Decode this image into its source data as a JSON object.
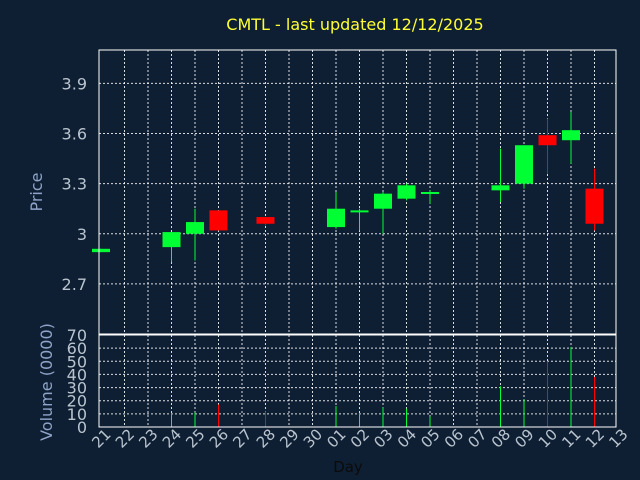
{
  "chart_data": [
    {
      "type": "candlestick",
      "title": "CMTL - last updated 12/12/2025",
      "ylabel": "Price",
      "ylim": [
        2.4,
        4.1
      ],
      "yticks": [
        "2.7",
        "3",
        "3.3",
        "3.6",
        "3.9"
      ],
      "grid": true,
      "x": [
        "21",
        "22",
        "23",
        "24",
        "25",
        "26",
        "27",
        "28",
        "29",
        "30",
        "01",
        "02",
        "03",
        "04",
        "05",
        "06",
        "07",
        "08",
        "09",
        "10",
        "11",
        "12",
        "13"
      ],
      "candles": [
        {
          "day": 0,
          "open": 2.89,
          "high": 2.91,
          "low": 2.89,
          "close": 2.91
        },
        {
          "day": 3,
          "open": 2.92,
          "high": 3.01,
          "low": 2.83,
          "close": 3.01
        },
        {
          "day": 4,
          "open": 3.0,
          "high": 3.15,
          "low": 2.84,
          "close": 3.07
        },
        {
          "day": 5,
          "open": 3.14,
          "high": 3.14,
          "low": 3.02,
          "close": 3.02
        },
        {
          "day": 7,
          "open": 3.1,
          "high": 3.1,
          "low": 3.05,
          "close": 3.06
        },
        {
          "day": 10,
          "open": 3.04,
          "high": 3.25,
          "low": 3.03,
          "close": 3.15
        },
        {
          "day": 11,
          "open": 3.13,
          "high": 3.15,
          "low": 3.02,
          "close": 3.14
        },
        {
          "day": 12,
          "open": 3.15,
          "high": 3.25,
          "low": 3.0,
          "close": 3.24
        },
        {
          "day": 13,
          "open": 3.21,
          "high": 3.3,
          "low": 3.2,
          "close": 3.29
        },
        {
          "day": 14,
          "open": 3.24,
          "high": 3.26,
          "low": 3.18,
          "close": 3.25
        },
        {
          "day": 17,
          "open": 3.26,
          "high": 3.51,
          "low": 3.19,
          "close": 3.29
        },
        {
          "day": 18,
          "open": 3.3,
          "high": 3.53,
          "low": 3.27,
          "close": 3.53
        },
        {
          "day": 19,
          "open": 3.59,
          "high": 3.69,
          "low": 3.36,
          "close": 3.53
        },
        {
          "day": 20,
          "open": 3.56,
          "high": 3.73,
          "low": 3.42,
          "close": 3.62
        },
        {
          "day": 21,
          "open": 3.27,
          "high": 3.39,
          "low": 3.02,
          "close": 3.06
        }
      ],
      "up_color": "#00ff33",
      "down_color": "#ff0000"
    },
    {
      "type": "bar",
      "xlabel": "Day",
      "ylabel": "Volume (0000)",
      "ylim": [
        0,
        70
      ],
      "yticks": [
        "0",
        "10",
        "20",
        "30",
        "40",
        "50",
        "60",
        "70"
      ],
      "grid": true,
      "volumes": [
        {
          "day": 3,
          "value": 10,
          "up": true
        },
        {
          "day": 4,
          "value": 11,
          "up": true
        },
        {
          "day": 5,
          "value": 17,
          "up": false
        },
        {
          "day": 7,
          "value": 12,
          "up": false
        },
        {
          "day": 10,
          "value": 16,
          "up": true
        },
        {
          "day": 11,
          "value": 10,
          "up": true
        },
        {
          "day": 12,
          "value": 15,
          "up": true
        },
        {
          "day": 13,
          "value": 14,
          "up": true
        },
        {
          "day": 14,
          "value": 8,
          "up": true
        },
        {
          "day": 17,
          "value": 31,
          "up": true
        },
        {
          "day": 18,
          "value": 21,
          "up": true
        },
        {
          "day": 19,
          "value": 50,
          "up": false
        },
        {
          "day": 20,
          "value": 61,
          "up": true
        },
        {
          "day": 21,
          "value": 38,
          "up": false
        }
      ]
    }
  ]
}
